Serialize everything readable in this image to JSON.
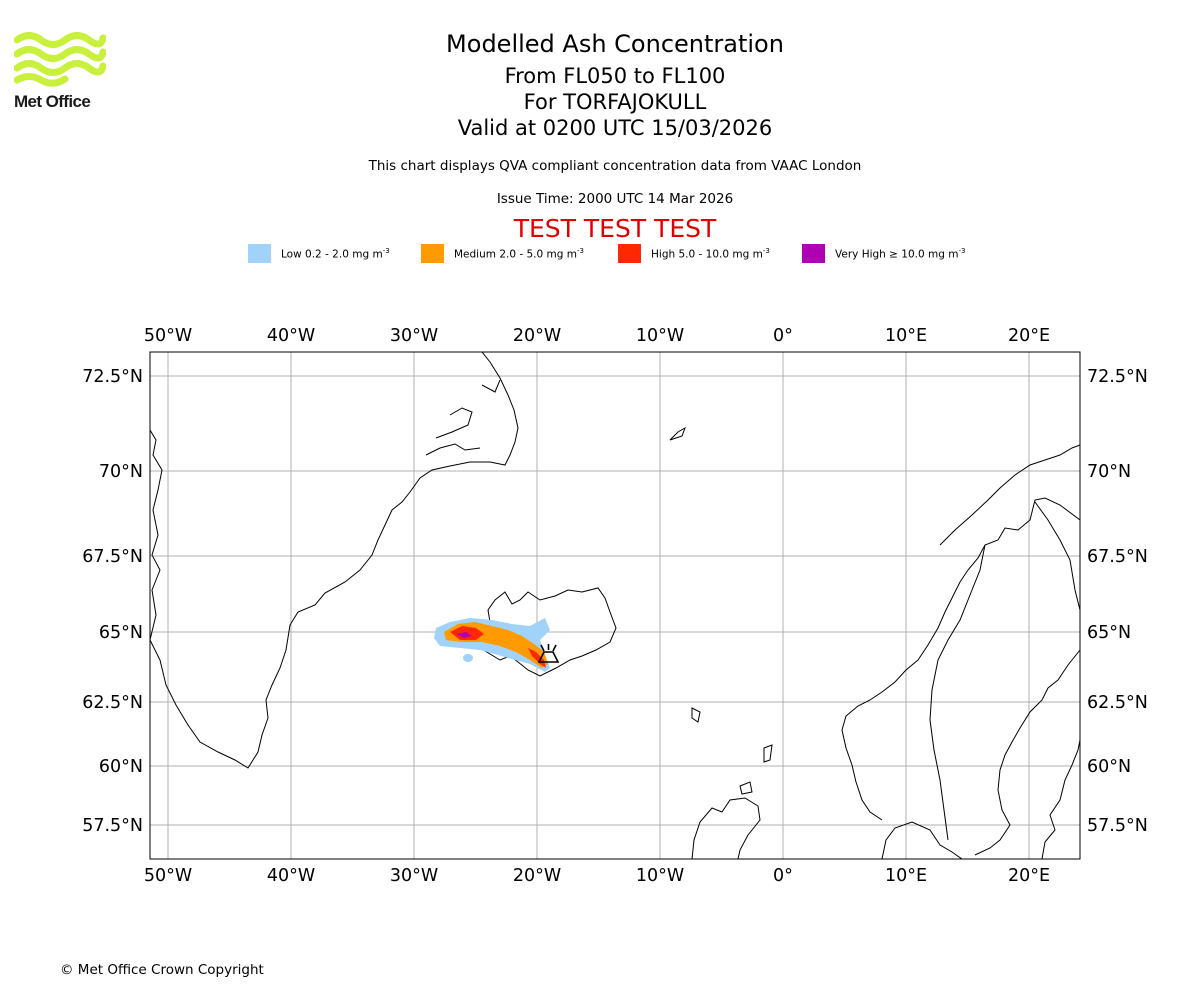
{
  "logo": {
    "text": "Met Office"
  },
  "header": {
    "title": "Modelled Ash Concentration",
    "levels": "From FL050 to FL100",
    "volcano": "For TORFAJOKULL",
    "valid": "Valid at 0200 UTC 15/03/2026",
    "subtitle": "This chart displays QVA compliant concentration data from VAAC London",
    "issue_time": "Issue Time: 2000 UTC 14 Mar 2026",
    "test_banner": "TEST TEST TEST"
  },
  "legend": [
    {
      "id": "low",
      "label": "Low 0.2 - 2.0 mg m",
      "unit_exp": "-3",
      "color": "#a0d2fa"
    },
    {
      "id": "medium",
      "label": "Medium 2.0 - 5.0 mg m",
      "unit_exp": "-3",
      "color": "#ff9a00"
    },
    {
      "id": "high",
      "label": "High 5.0 - 10.0 mg m",
      "unit_exp": "-3",
      "color": "#ff2800"
    },
    {
      "id": "veryhigh",
      "label": "Very High  ≥  10.0 mg m",
      "unit_exp": "-3",
      "color": "#b000b4"
    }
  ],
  "map": {
    "lon_ticks": [
      "50°W",
      "40°W",
      "30°W",
      "20°W",
      "10°W",
      "0°",
      "10°E",
      "20°E"
    ],
    "lat_ticks": [
      "72.5°N",
      "70°N",
      "67.5°N",
      "65°N",
      "62.5°N",
      "60°N",
      "57.5°N"
    ],
    "volcano_icon": "volcano-icon"
  },
  "footer": {
    "copyright": "© Met Office Crown Copyright"
  }
}
